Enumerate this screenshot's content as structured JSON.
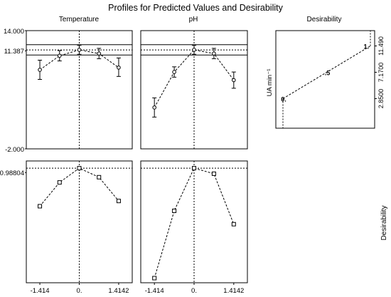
{
  "chart_data": {
    "type": "line",
    "title": "Profiles for Predicted Values and Desirability",
    "x_ticks": [
      {
        "label": "-1.414",
        "value": -1.414
      },
      {
        "label": "0.",
        "value": 0
      },
      {
        "label": "1.4142",
        "value": 1.4142
      }
    ],
    "factors": [
      {
        "name": "Temperature",
        "x": [
          -1.414,
          -0.707,
          0,
          0.707,
          1.414
        ],
        "predicted": [
          8.7,
          10.6,
          11.4,
          10.9,
          9.0
        ],
        "ci_low": [
          7.4,
          9.9,
          10.8,
          10.2,
          7.8
        ],
        "ci_high": [
          10.0,
          11.3,
          12.0,
          11.6,
          10.3
        ],
        "desirability": [
          0.66,
          0.865,
          0.98804,
          0.91,
          0.705
        ]
      },
      {
        "name": "pH",
        "x": [
          -1.414,
          -0.707,
          0,
          0.707,
          1.414
        ],
        "predicted": [
          3.6,
          8.4,
          11.4,
          10.9,
          7.3
        ],
        "ci_low": [
          2.3,
          7.7,
          10.8,
          10.2,
          6.2
        ],
        "ci_high": [
          4.9,
          9.1,
          12.0,
          11.6,
          8.4
        ],
        "desirability": [
          0.04,
          0.62,
          0.98804,
          0.94,
          0.505
        ]
      }
    ],
    "predicted_panel": {
      "ylim": [
        -2.0,
        14.0
      ],
      "ytick_labels": [
        "14.000",
        "11.387",
        "-2.000"
      ],
      "ytick_values": [
        14.0,
        11.387,
        -2.0
      ],
      "optimum": 11.387,
      "band_low": 10.7,
      "band_high": 12.1
    },
    "desirability_panel": {
      "ylim": [
        0.0,
        1.05
      ],
      "ytick_label": "0.98804",
      "ytick_value": 0.98804,
      "ylabel": "Desirability"
    },
    "desirability_function": {
      "title": "Desirability",
      "ylabel": "UA min⁻¹",
      "ytick_labels": [
        "11.490",
        "7.1700",
        "2.8500"
      ],
      "ytick_values": [
        11.49,
        7.17,
        2.85
      ],
      "ylim": [
        -2.0,
        14.0
      ],
      "points": [
        {
          "label": "0.",
          "d": 0.0,
          "value": 2.85
        },
        {
          "label": ".5",
          "d": 0.5,
          "value": 7.17
        },
        {
          "label": "1.",
          "d": 1.0,
          "value": 11.49
        }
      ]
    }
  }
}
